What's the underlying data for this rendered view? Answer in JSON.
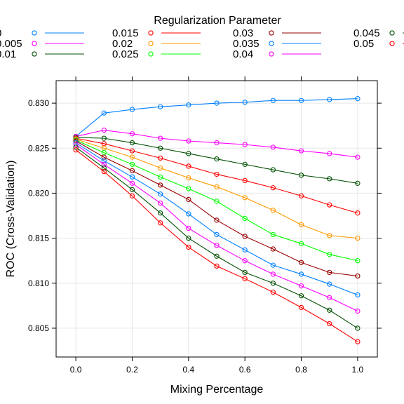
{
  "chart_data": {
    "type": "line",
    "title": "",
    "xlabel": "Mixing Percentage",
    "ylabel": "ROC (Cross-Validation)",
    "legend_title": "Regularization Parameter",
    "legend_placement": "top",
    "xlim": [
      -0.07,
      1.07
    ],
    "ylim": [
      0.8018,
      0.8325
    ],
    "x_ticks": [
      0.0,
      0.2,
      0.4,
      0.6,
      0.8,
      1.0
    ],
    "x_tick_labels": [
      "0.0",
      "0.2",
      "0.4",
      "0.6",
      "0.8",
      "1.0"
    ],
    "y_ticks": [
      0.805,
      0.81,
      0.815,
      0.82,
      0.825,
      0.83
    ],
    "y_tick_labels": [
      "0.805",
      "0.810",
      "0.815",
      "0.820",
      "0.825",
      "0.830"
    ],
    "grid": true,
    "x": [
      0.0,
      0.1,
      0.2,
      0.3,
      0.4,
      0.5,
      0.6,
      0.7,
      0.8,
      0.9,
      1.0
    ],
    "series": [
      {
        "name": "0",
        "color": "#0080ff",
        "values": [
          0.8263,
          0.8289,
          0.8293,
          0.8296,
          0.8298,
          0.83,
          0.8301,
          0.8303,
          0.8303,
          0.8304,
          0.8305
        ]
      },
      {
        "name": "0.005",
        "color": "#ff00ff",
        "values": [
          0.8263,
          0.827,
          0.8266,
          0.8261,
          0.8258,
          0.8256,
          0.8254,
          0.8251,
          0.8247,
          0.8244,
          0.824
        ]
      },
      {
        "name": "0.01",
        "color": "#005000",
        "values": [
          0.8262,
          0.8261,
          0.8256,
          0.825,
          0.8244,
          0.8238,
          0.8232,
          0.8226,
          0.822,
          0.8216,
          0.8211
        ]
      },
      {
        "name": "0.015",
        "color": "#ff0000",
        "values": [
          0.8261,
          0.8255,
          0.8247,
          0.8239,
          0.823,
          0.8221,
          0.8214,
          0.8206,
          0.8197,
          0.8187,
          0.8178
        ]
      },
      {
        "name": "0.02",
        "color": "#ff9900",
        "values": [
          0.826,
          0.825,
          0.824,
          0.8228,
          0.8217,
          0.8207,
          0.8195,
          0.8181,
          0.8165,
          0.8153,
          0.815
        ]
      },
      {
        "name": "0.025",
        "color": "#00ff00",
        "values": [
          0.8259,
          0.8245,
          0.8232,
          0.8218,
          0.8205,
          0.8191,
          0.8172,
          0.8154,
          0.8144,
          0.8132,
          0.8125
        ]
      },
      {
        "name": "0.03",
        "color": "#990000",
        "values": [
          0.8258,
          0.824,
          0.8225,
          0.8209,
          0.8193,
          0.817,
          0.8152,
          0.8138,
          0.8123,
          0.8112,
          0.8108
        ]
      },
      {
        "name": "0.035",
        "color": "#0080ff",
        "values": [
          0.8256,
          0.8236,
          0.8218,
          0.8199,
          0.8177,
          0.8154,
          0.8137,
          0.812,
          0.811,
          0.8099,
          0.8087
        ]
      },
      {
        "name": "0.04",
        "color": "#ff00ff",
        "values": [
          0.8254,
          0.8232,
          0.8211,
          0.8189,
          0.8161,
          0.8142,
          0.8125,
          0.811,
          0.8097,
          0.8084,
          0.8069
        ]
      },
      {
        "name": "0.045",
        "color": "#005000",
        "values": [
          0.8251,
          0.8228,
          0.8204,
          0.8178,
          0.815,
          0.813,
          0.8112,
          0.81,
          0.8086,
          0.807,
          0.805
        ]
      },
      {
        "name": "0.05",
        "color": "#ff0000",
        "values": [
          0.8248,
          0.8224,
          0.8197,
          0.8167,
          0.814,
          0.8119,
          0.8105,
          0.809,
          0.8073,
          0.8055,
          0.8035
        ]
      }
    ]
  }
}
